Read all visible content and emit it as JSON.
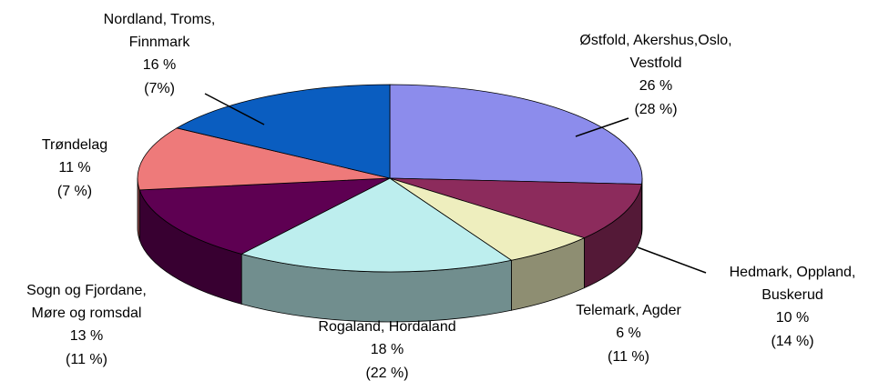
{
  "chart_data": {
    "type": "pie",
    "categories": [
      [
        "Østfold, Akershus,Oslo,",
        "Vestfold"
      ],
      [
        "Hedmark, Oppland,",
        "Buskerud"
      ],
      [
        "Telemark, Agder"
      ],
      [
        "Rogaland, Hordaland"
      ],
      [
        "Sogn og Fjordane,",
        "Møre og romsdal"
      ],
      [
        "Trøndelag"
      ],
      [
        "Nordland, Troms,",
        "Finnmark"
      ]
    ],
    "values": [
      26,
      10,
      6,
      18,
      13,
      11,
      16
    ],
    "value_labels": [
      "26 %",
      "10 %",
      "6 %",
      "18 %",
      "13 %",
      "11 %",
      "16 %"
    ],
    "secondary_labels": [
      "(28 %)",
      "(14 %)",
      "(11 %)",
      "(22 %)",
      "(11 %)",
      "(7 %)",
      "(7%)"
    ],
    "colors": [
      "#8c8cec",
      "#8c2b5c",
      "#eeeebe",
      "#bdeeee",
      "#5e0052",
      "#ee7a7a",
      "#0a5dc0"
    ]
  }
}
